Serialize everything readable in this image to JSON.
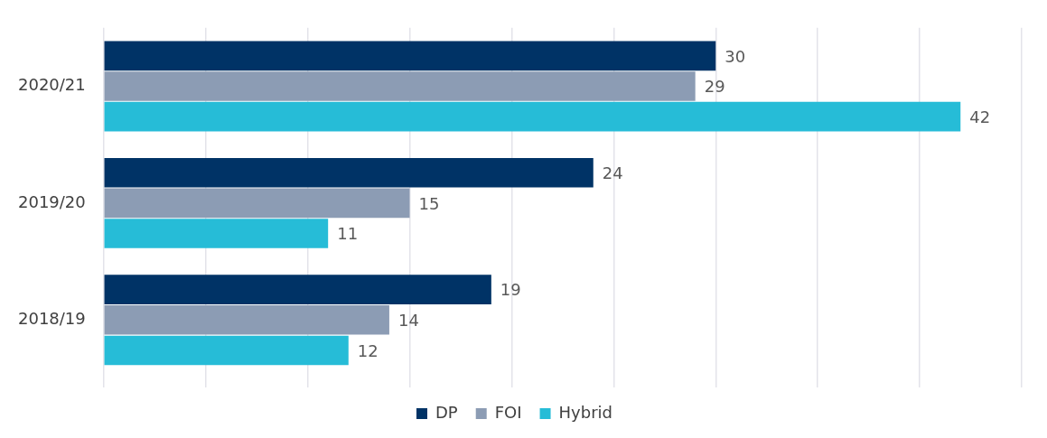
{
  "chart_data": {
    "type": "bar",
    "orientation": "horizontal",
    "categories": [
      "2020/21",
      "2019/20",
      "2018/19"
    ],
    "series": [
      {
        "name": "DP",
        "color": "#003366",
        "values": [
          30,
          24,
          19
        ]
      },
      {
        "name": "FOI",
        "color": "#8c9cb4",
        "values": [
          29,
          15,
          14
        ]
      },
      {
        "name": "Hybrid",
        "color": "#26bcd7",
        "values": [
          42,
          11,
          12
        ]
      }
    ],
    "xlim": [
      0,
      45
    ],
    "xticks": [
      {
        "value": 0,
        "label": null
      },
      {
        "value": 5,
        "label": null
      },
      {
        "value": 10,
        "label": null
      },
      {
        "value": 15,
        "label": null
      },
      {
        "value": 20,
        "label": null
      },
      {
        "value": 25,
        "label": null
      },
      {
        "value": 30,
        "label": null
      },
      {
        "value": 35,
        "label": null
      },
      {
        "value": 40,
        "label": null
      },
      {
        "value": 45,
        "label": null
      }
    ],
    "tick_labels": "y",
    "grid": "x",
    "legend": "bottom",
    "data_labels": true
  }
}
